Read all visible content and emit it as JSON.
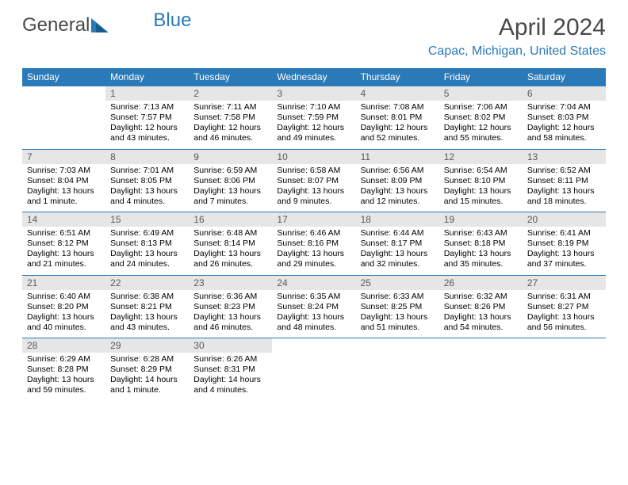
{
  "brand": {
    "text1": "General",
    "text2": "Blue"
  },
  "header": {
    "title": "April 2024",
    "location": "Capac, Michigan, United States"
  },
  "colors": {
    "header_bg": "#2a7ab9",
    "header_text": "#ffffff",
    "day_number_bg": "#e6e6e6",
    "day_number_text": "#5a5a5a",
    "border": "#2a7ab9",
    "title_color": "#4a4a4a",
    "location_color": "#2a7ab9"
  },
  "weekdays": [
    "Sunday",
    "Monday",
    "Tuesday",
    "Wednesday",
    "Thursday",
    "Friday",
    "Saturday"
  ],
  "weeks": [
    [
      {
        "day": "",
        "lines": []
      },
      {
        "day": "1",
        "lines": [
          "Sunrise: 7:13 AM",
          "Sunset: 7:57 PM",
          "Daylight: 12 hours",
          "and 43 minutes."
        ]
      },
      {
        "day": "2",
        "lines": [
          "Sunrise: 7:11 AM",
          "Sunset: 7:58 PM",
          "Daylight: 12 hours",
          "and 46 minutes."
        ]
      },
      {
        "day": "3",
        "lines": [
          "Sunrise: 7:10 AM",
          "Sunset: 7:59 PM",
          "Daylight: 12 hours",
          "and 49 minutes."
        ]
      },
      {
        "day": "4",
        "lines": [
          "Sunrise: 7:08 AM",
          "Sunset: 8:01 PM",
          "Daylight: 12 hours",
          "and 52 minutes."
        ]
      },
      {
        "day": "5",
        "lines": [
          "Sunrise: 7:06 AM",
          "Sunset: 8:02 PM",
          "Daylight: 12 hours",
          "and 55 minutes."
        ]
      },
      {
        "day": "6",
        "lines": [
          "Sunrise: 7:04 AM",
          "Sunset: 8:03 PM",
          "Daylight: 12 hours",
          "and 58 minutes."
        ]
      }
    ],
    [
      {
        "day": "7",
        "lines": [
          "Sunrise: 7:03 AM",
          "Sunset: 8:04 PM",
          "Daylight: 13 hours",
          "and 1 minute."
        ]
      },
      {
        "day": "8",
        "lines": [
          "Sunrise: 7:01 AM",
          "Sunset: 8:05 PM",
          "Daylight: 13 hours",
          "and 4 minutes."
        ]
      },
      {
        "day": "9",
        "lines": [
          "Sunrise: 6:59 AM",
          "Sunset: 8:06 PM",
          "Daylight: 13 hours",
          "and 7 minutes."
        ]
      },
      {
        "day": "10",
        "lines": [
          "Sunrise: 6:58 AM",
          "Sunset: 8:07 PM",
          "Daylight: 13 hours",
          "and 9 minutes."
        ]
      },
      {
        "day": "11",
        "lines": [
          "Sunrise: 6:56 AM",
          "Sunset: 8:09 PM",
          "Daylight: 13 hours",
          "and 12 minutes."
        ]
      },
      {
        "day": "12",
        "lines": [
          "Sunrise: 6:54 AM",
          "Sunset: 8:10 PM",
          "Daylight: 13 hours",
          "and 15 minutes."
        ]
      },
      {
        "day": "13",
        "lines": [
          "Sunrise: 6:52 AM",
          "Sunset: 8:11 PM",
          "Daylight: 13 hours",
          "and 18 minutes."
        ]
      }
    ],
    [
      {
        "day": "14",
        "lines": [
          "Sunrise: 6:51 AM",
          "Sunset: 8:12 PM",
          "Daylight: 13 hours",
          "and 21 minutes."
        ]
      },
      {
        "day": "15",
        "lines": [
          "Sunrise: 6:49 AM",
          "Sunset: 8:13 PM",
          "Daylight: 13 hours",
          "and 24 minutes."
        ]
      },
      {
        "day": "16",
        "lines": [
          "Sunrise: 6:48 AM",
          "Sunset: 8:14 PM",
          "Daylight: 13 hours",
          "and 26 minutes."
        ]
      },
      {
        "day": "17",
        "lines": [
          "Sunrise: 6:46 AM",
          "Sunset: 8:16 PM",
          "Daylight: 13 hours",
          "and 29 minutes."
        ]
      },
      {
        "day": "18",
        "lines": [
          "Sunrise: 6:44 AM",
          "Sunset: 8:17 PM",
          "Daylight: 13 hours",
          "and 32 minutes."
        ]
      },
      {
        "day": "19",
        "lines": [
          "Sunrise: 6:43 AM",
          "Sunset: 8:18 PM",
          "Daylight: 13 hours",
          "and 35 minutes."
        ]
      },
      {
        "day": "20",
        "lines": [
          "Sunrise: 6:41 AM",
          "Sunset: 8:19 PM",
          "Daylight: 13 hours",
          "and 37 minutes."
        ]
      }
    ],
    [
      {
        "day": "21",
        "lines": [
          "Sunrise: 6:40 AM",
          "Sunset: 8:20 PM",
          "Daylight: 13 hours",
          "and 40 minutes."
        ]
      },
      {
        "day": "22",
        "lines": [
          "Sunrise: 6:38 AM",
          "Sunset: 8:21 PM",
          "Daylight: 13 hours",
          "and 43 minutes."
        ]
      },
      {
        "day": "23",
        "lines": [
          "Sunrise: 6:36 AM",
          "Sunset: 8:23 PM",
          "Daylight: 13 hours",
          "and 46 minutes."
        ]
      },
      {
        "day": "24",
        "lines": [
          "Sunrise: 6:35 AM",
          "Sunset: 8:24 PM",
          "Daylight: 13 hours",
          "and 48 minutes."
        ]
      },
      {
        "day": "25",
        "lines": [
          "Sunrise: 6:33 AM",
          "Sunset: 8:25 PM",
          "Daylight: 13 hours",
          "and 51 minutes."
        ]
      },
      {
        "day": "26",
        "lines": [
          "Sunrise: 6:32 AM",
          "Sunset: 8:26 PM",
          "Daylight: 13 hours",
          "and 54 minutes."
        ]
      },
      {
        "day": "27",
        "lines": [
          "Sunrise: 6:31 AM",
          "Sunset: 8:27 PM",
          "Daylight: 13 hours",
          "and 56 minutes."
        ]
      }
    ],
    [
      {
        "day": "28",
        "lines": [
          "Sunrise: 6:29 AM",
          "Sunset: 8:28 PM",
          "Daylight: 13 hours",
          "and 59 minutes."
        ]
      },
      {
        "day": "29",
        "lines": [
          "Sunrise: 6:28 AM",
          "Sunset: 8:29 PM",
          "Daylight: 14 hours",
          "and 1 minute."
        ]
      },
      {
        "day": "30",
        "lines": [
          "Sunrise: 6:26 AM",
          "Sunset: 8:31 PM",
          "Daylight: 14 hours",
          "and 4 minutes."
        ]
      },
      {
        "day": "",
        "lines": []
      },
      {
        "day": "",
        "lines": []
      },
      {
        "day": "",
        "lines": []
      },
      {
        "day": "",
        "lines": []
      }
    ]
  ]
}
